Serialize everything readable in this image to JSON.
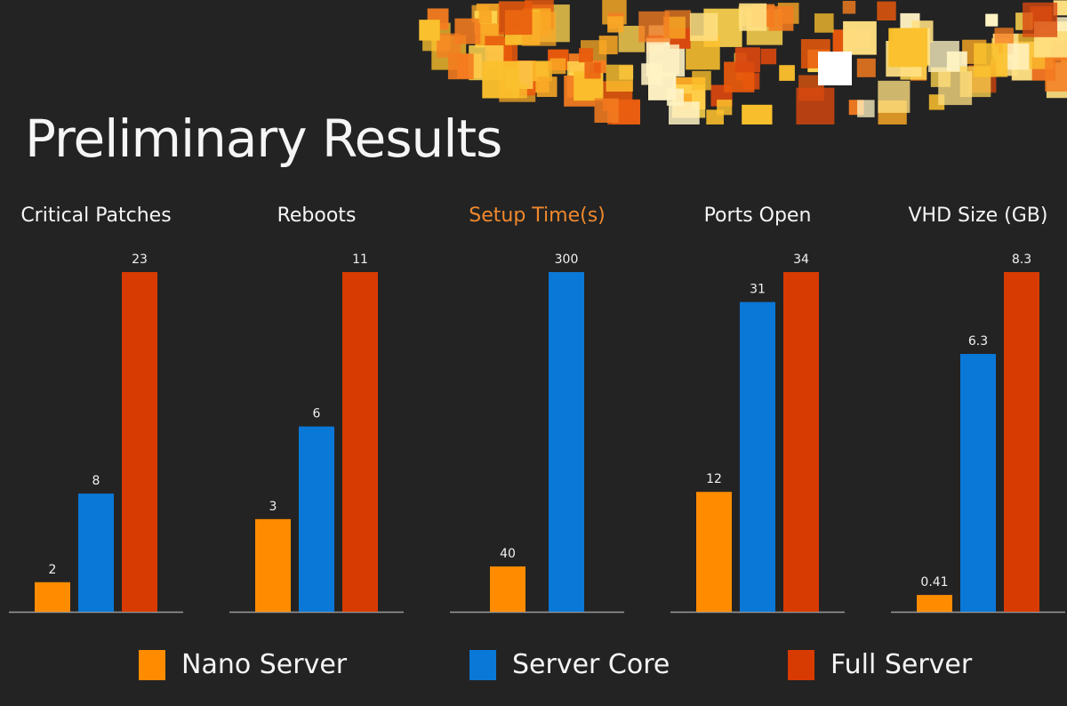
{
  "title": "Preliminary Results",
  "colors": {
    "background": "#232323",
    "nano": "#ff8c00",
    "core": "#0a78d7",
    "full": "#d83b01",
    "highlight_title": "#f0882d",
    "axis": "#9a9a9a"
  },
  "legend": [
    {
      "label": "Nano Server",
      "color": "#ff8c00"
    },
    {
      "label": "Server Core",
      "color": "#0a78d7"
    },
    {
      "label": "Full Server",
      "color": "#d83b01"
    }
  ],
  "chart_data": [
    {
      "type": "bar",
      "title": "Critical Patches",
      "highlight": false,
      "categories": [
        "Nano Server",
        "Server Core",
        "Full Server"
      ],
      "values": [
        2,
        8,
        23
      ],
      "labels": [
        "2",
        "8",
        "23"
      ]
    },
    {
      "type": "bar",
      "title": "Reboots",
      "highlight": false,
      "categories": [
        "Nano Server",
        "Server Core",
        "Full Server"
      ],
      "values": [
        3,
        6,
        11
      ],
      "labels": [
        "3",
        "6",
        "11"
      ]
    },
    {
      "type": "bar",
      "title": "Setup Time(s)",
      "highlight": true,
      "categories": [
        "Nano Server",
        "Server Core"
      ],
      "values": [
        40,
        300
      ],
      "labels": [
        "40",
        "300"
      ]
    },
    {
      "type": "bar",
      "title": "Ports Open",
      "highlight": false,
      "categories": [
        "Nano Server",
        "Server Core",
        "Full Server"
      ],
      "values": [
        12,
        31,
        34
      ],
      "labels": [
        "12",
        "31",
        "34"
      ]
    },
    {
      "type": "bar",
      "title": "VHD Size (GB)",
      "highlight": false,
      "categories": [
        "Nano Server",
        "Server Core",
        "Full Server"
      ],
      "values": [
        0.41,
        6.3,
        8.3
      ],
      "labels": [
        "0.41",
        "6.3",
        "8.3"
      ]
    }
  ]
}
